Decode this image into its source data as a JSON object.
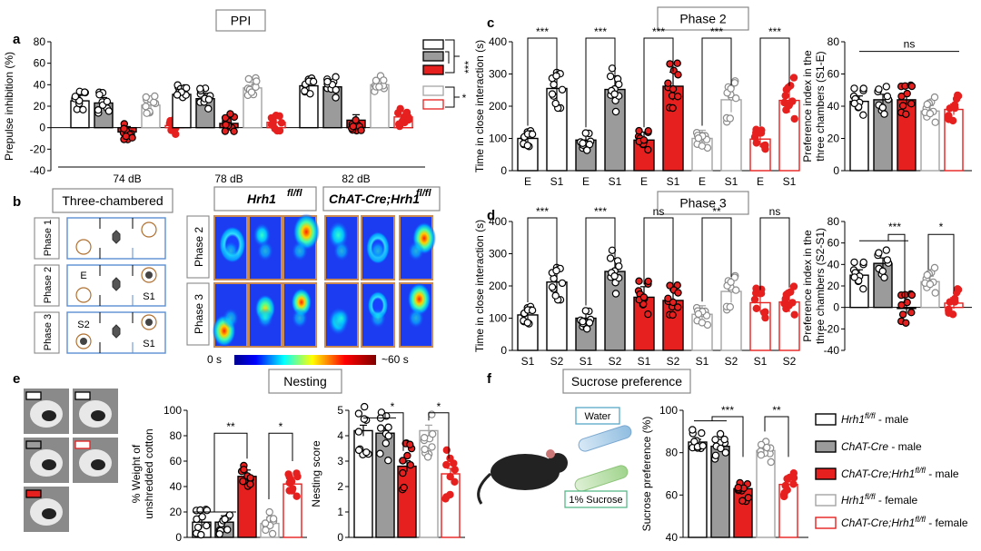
{
  "colors": {
    "white": "#ffffff",
    "gray": "#9b9b9b",
    "red": "#e6201e",
    "lightgray": "#a4a4a4",
    "red_open": "#e6201e",
    "black": "#000000"
  },
  "labels": {
    "panel_a": "a",
    "panel_b": "b",
    "panel_c": "c",
    "panel_d": "d",
    "panel_e": "e",
    "panel_f": "f",
    "ppi_title": "PPI",
    "phase2_title": "Phase 2",
    "phase3_title": "Phase 3",
    "nesting_title": "Nesting",
    "sucrose_title": "Sucrose preference",
    "three_chambered": "Three-chambered",
    "hrh1_header": "Hrh1",
    "hrh1_sup": "fl/fl",
    "chat_header": "ChAT-Cre;Hrh1",
    "chat_sup": "fl/fl",
    "phase1": "Phase 1",
    "phase2": "Phase 2",
    "phase3": "Phase 3",
    "E": "E",
    "S1": "S1",
    "S2": "S2",
    "heat_min": "0 s",
    "heat_max": "~60 s",
    "water": "Water",
    "sucrose": "1% Sucrose",
    "ppi_ylabel": "Prepulse inhibition (%)",
    "c_ylabel": "Time in close interaction (s)",
    "c_pref_ylabel_1": "Preference index in the",
    "c_pref_ylabel_2": "three chambers (S1-E)",
    "d_ylabel": "Time in close interaction (s)",
    "d_pref_ylabel_1": "Preference index in the",
    "d_pref_ylabel_2": "three chambers (S2-S1)",
    "e_ylabel_1": "% Weight of",
    "e_ylabel_2": "unshredded cotton",
    "e2_ylabel": "Nesting score",
    "f_ylabel": "Sucrose preference (%)",
    "sig_3": "***",
    "sig_2": "**",
    "sig_1": "*",
    "sig_ns": "ns"
  },
  "legend": [
    {
      "name": "Hrh1",
      "sup": "fl/fl",
      "suffix": " - male",
      "style": "white"
    },
    {
      "name": "ChAT-Cre",
      "sup": "",
      "suffix": " - male",
      "style": "gray"
    },
    {
      "name": "ChAT-Cre;Hrh1",
      "sup": "fl/fl",
      "suffix": " - male",
      "style": "red"
    },
    {
      "name": "Hrh1",
      "sup": "fl/fl",
      "suffix": " - female",
      "style": "lightgray"
    },
    {
      "name": "ChAT-Cre;Hrh1",
      "sup": "fl/fl",
      "suffix": " - female",
      "style": "red_open"
    }
  ],
  "chart_data": [
    {
      "id": "a",
      "type": "bar",
      "title": "PPI",
      "ylabel": "Prepulse inhibition (%)",
      "ylim": [
        -40,
        80
      ],
      "yticks": [
        -40,
        -20,
        0,
        20,
        40,
        60,
        80
      ],
      "categories": [
        "74 dB",
        "78 dB",
        "82 dB"
      ],
      "series": [
        {
          "name": "Hrh1 fl/fl - male",
          "values": [
            25,
            31,
            39
          ]
        },
        {
          "name": "ChAT-Cre - male",
          "values": [
            23,
            27,
            38
          ]
        },
        {
          "name": "ChAT-Cre;Hrh1 fl/fl - male",
          "values": [
            -4,
            4,
            7
          ]
        },
        {
          "name": "Hrh1 fl/fl - female",
          "values": [
            21,
            37,
            40
          ]
        },
        {
          "name": "ChAT-Cre;Hrh1 fl/fl - female",
          "values": [
            2,
            5,
            10
          ]
        }
      ],
      "annotations": [
        "***",
        "*"
      ]
    },
    {
      "id": "c_time",
      "type": "bar",
      "title": "Phase 2",
      "ylabel": "Time in close interaction (s)",
      "ylim": [
        0,
        400
      ],
      "yticks": [
        0,
        100,
        200,
        300,
        400
      ],
      "groups": [
        {
          "values": [
            100,
            255
          ],
          "labels": [
            "E",
            "S1"
          ],
          "sig": "***"
        },
        {
          "values": [
            95,
            252
          ],
          "labels": [
            "E",
            "S1"
          ],
          "sig": "***"
        },
        {
          "values": [
            95,
            262
          ],
          "labels": [
            "E",
            "S1"
          ],
          "sig": "***"
        },
        {
          "values": [
            100,
            220
          ],
          "labels": [
            "E",
            "S1"
          ],
          "sig": "***"
        },
        {
          "values": [
            98,
            218
          ],
          "labels": [
            "E",
            "S1"
          ],
          "sig": "***"
        }
      ]
    },
    {
      "id": "c_pref",
      "type": "bar",
      "ylabel": "Preference index in the three chambers (S1-E)",
      "ylim": [
        0,
        80
      ],
      "yticks": [
        0,
        20,
        40,
        60,
        80
      ],
      "values": [
        43,
        44,
        44,
        37,
        38
      ],
      "annotations": [
        "ns"
      ]
    },
    {
      "id": "d_time",
      "type": "bar",
      "title": "Phase 3",
      "ylabel": "Time in close interaction (s)",
      "ylim": [
        0,
        400
      ],
      "yticks": [
        0,
        100,
        200,
        300,
        400
      ],
      "groups": [
        {
          "values": [
            110,
            212
          ],
          "labels": [
            "S1",
            "S2"
          ],
          "sig": "***"
        },
        {
          "values": [
            100,
            245
          ],
          "labels": [
            "S1",
            "S2"
          ],
          "sig": "***"
        },
        {
          "values": [
            165,
            155
          ],
          "labels": [
            "S1",
            "S2"
          ],
          "sig": "ns"
        },
        {
          "values": [
            112,
            183
          ],
          "labels": [
            "S1",
            "S2"
          ],
          "sig": "**"
        },
        {
          "values": [
            148,
            150
          ],
          "labels": [
            "S1",
            "S2"
          ],
          "sig": "ns"
        }
      ]
    },
    {
      "id": "d_pref",
      "type": "bar",
      "ylabel": "Preference index in the three chambers (S2-S1)",
      "ylim": [
        -40,
        80
      ],
      "yticks": [
        -40,
        -20,
        0,
        20,
        40,
        60,
        80
      ],
      "values": [
        30,
        41,
        -1,
        24,
        4
      ],
      "annotations": [
        "***",
        "*"
      ]
    },
    {
      "id": "e_weight",
      "type": "bar",
      "title": "Nesting",
      "ylabel": "% Weight of unshredded cotton",
      "ylim": [
        0,
        100
      ],
      "yticks": [
        0,
        20,
        40,
        60,
        80,
        100
      ],
      "values": [
        12,
        12,
        48,
        11,
        42
      ],
      "annotations": [
        "**",
        "*"
      ]
    },
    {
      "id": "e_score",
      "type": "bar",
      "ylabel": "Nesting score",
      "ylim": [
        0,
        5
      ],
      "yticks": [
        0,
        1,
        2,
        3,
        4,
        5
      ],
      "values": [
        4.2,
        4.1,
        2.8,
        4.2,
        2.5
      ],
      "annotations": [
        "*",
        "*"
      ]
    },
    {
      "id": "f",
      "type": "bar",
      "title": "Sucrose preference",
      "ylabel": "Sucrose preference (%)",
      "ylim": [
        40,
        100
      ],
      "yticks": [
        40,
        60,
        80,
        100
      ],
      "values": [
        85,
        83,
        63,
        81,
        65
      ],
      "annotations": [
        "***",
        "**"
      ]
    }
  ]
}
